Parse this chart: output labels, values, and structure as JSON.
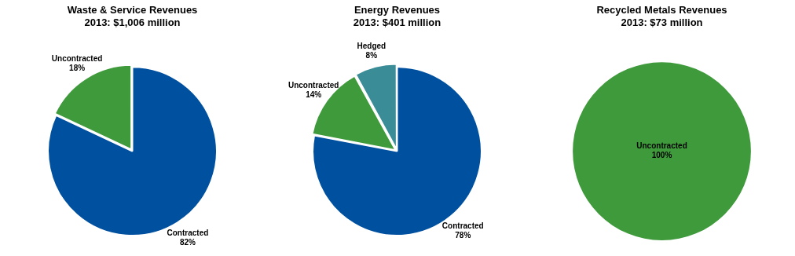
{
  "chart_data": [
    {
      "type": "pie",
      "title": "Waste & Service Revenues",
      "subtitle": "2013: $1,006 million",
      "categories": [
        "Contracted",
        "Uncontracted"
      ],
      "values": [
        82,
        18
      ],
      "value_labels": [
        "82%",
        "18%"
      ],
      "colors": [
        "#0050a0",
        "#3f9a3c"
      ],
      "legend": false
    },
    {
      "type": "pie",
      "title": "Energy Revenues",
      "subtitle": "2013: $401 million",
      "categories": [
        "Contracted",
        "Uncontracted",
        "Hedged"
      ],
      "values": [
        78,
        14,
        8
      ],
      "value_labels": [
        "78%",
        "14%",
        "8%"
      ],
      "colors": [
        "#0050a0",
        "#3f9a3c",
        "#3a8c96"
      ],
      "legend": false
    },
    {
      "type": "pie",
      "title": "Recycled Metals Revenues",
      "subtitle": "2013: $73 million",
      "categories": [
        "Uncontracted"
      ],
      "values": [
        100
      ],
      "value_labels": [
        "100%"
      ],
      "colors": [
        "#3f9a3c"
      ],
      "legend": false
    }
  ]
}
